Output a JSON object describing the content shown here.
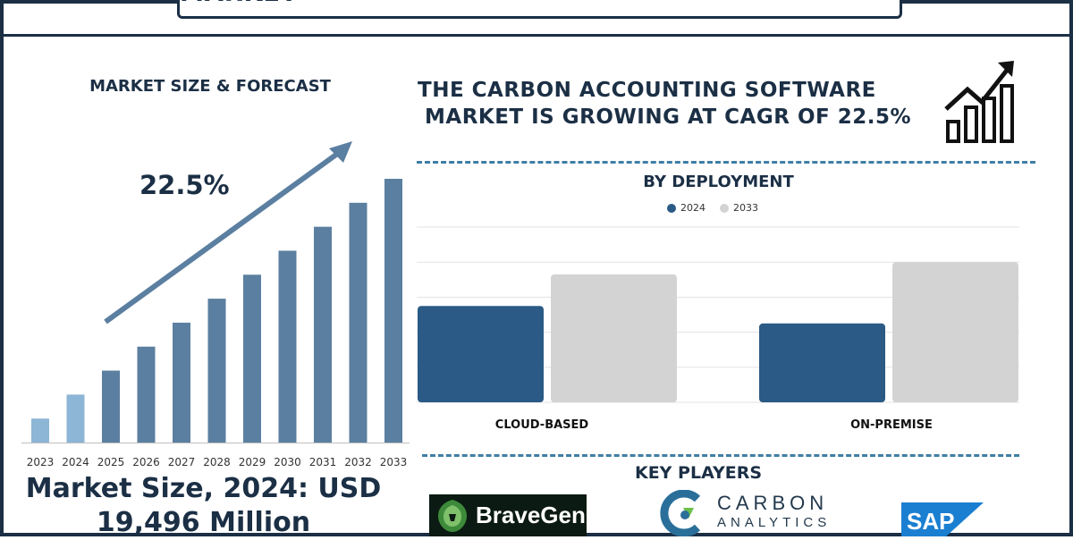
{
  "title": "GLOBAL CARBON ACCOUNTING SOFTWARE MARKET",
  "left": {
    "heading": "MARKET SIZE & FORECAST",
    "growth_rate": "22.5%",
    "market_size_line1": "Market Size, 2024: USD",
    "market_size_line2": "19,496 Million"
  },
  "headline": {
    "line1": "THE CARBON ACCOUNTING SOFTWARE",
    "line2": "MARKET IS GROWING AT CAGR OF 22.5%"
  },
  "deployment_title": "BY DEPLOYMENT",
  "players_title": "KEY PLAYERS",
  "players": {
    "bravegen": "BraveGen",
    "carbon_line1": "CARBON",
    "carbon_line2": "ANALYTICS",
    "sap": "SAP"
  },
  "colors": {
    "navy": "#1b2f45",
    "forecast_bar": "#5b7fa0",
    "forecast_bar_light": "#8db5d6",
    "series_2024": "#2a5a85",
    "series_2033": "#d3d3d3",
    "accent": "#3f7ea4"
  },
  "icons": [
    "growth-chart-icon",
    "lion-icon",
    "carbon-analytics-icon",
    "sap-logo"
  ],
  "chart_data": [
    {
      "type": "bar",
      "categories": [
        "2023",
        "2024",
        "2025",
        "2026",
        "2027",
        "2028",
        "2029",
        "2030",
        "2031",
        "2032",
        "2033"
      ],
      "values": [
        1,
        2,
        3,
        4,
        5,
        6,
        7,
        8,
        9,
        10,
        11
      ],
      "highlighted": [
        "2023",
        "2024"
      ],
      "trend_arrow": true,
      "annotation": "22.5%",
      "title": "MARKET SIZE & FORECAST",
      "xlabel": "",
      "ylabel": "",
      "grid": false
    },
    {
      "type": "bar",
      "title": "BY DEPLOYMENT",
      "categories": [
        "CLOUD-BASED",
        "ON-PREMISE"
      ],
      "series": [
        {
          "name": "2024",
          "values": [
            55,
            45
          ]
        },
        {
          "name": "2033",
          "values": [
            73,
            80
          ]
        }
      ],
      "ylim": [
        0,
        100
      ],
      "grid": true,
      "legend": "top-center"
    }
  ]
}
